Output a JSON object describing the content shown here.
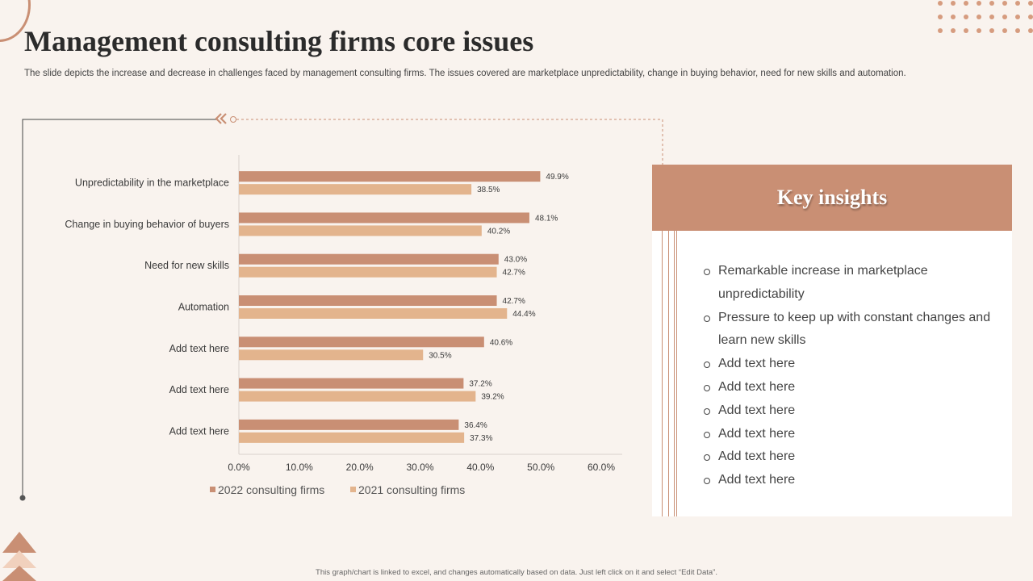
{
  "header": {
    "title": "Management consulting firms core issues",
    "subtitle": "The slide depicts the increase and decrease in challenges faced by management consulting firms. The issues covered are marketplace unpredictability, change in buying behavior, need for new skills and automation."
  },
  "colors": {
    "accent": "#c98f74",
    "series_2022": "#c98f74",
    "series_2021": "#e3b48d",
    "background": "#f9f3ee"
  },
  "chart_data": {
    "type": "bar",
    "orientation": "horizontal",
    "categories": [
      "Unpredictability in the marketplace",
      "Change in buying behavior of buyers",
      "Need for new skills",
      "Automation",
      "Add text here",
      "Add text here",
      "Add text here"
    ],
    "series": [
      {
        "name": "2022 consulting firms",
        "color": "#c98f74",
        "values": [
          49.9,
          48.1,
          43.0,
          42.7,
          40.6,
          37.2,
          36.4
        ]
      },
      {
        "name": "2021 consulting firms",
        "color": "#e3b48d",
        "values": [
          38.5,
          40.2,
          42.7,
          44.4,
          30.5,
          39.2,
          37.3
        ]
      }
    ],
    "xlim": [
      0,
      60
    ],
    "xticks": [
      0,
      10,
      20,
      30,
      40,
      50,
      60
    ],
    "tick_format": "percent-1dp",
    "legend": "bottom",
    "grid": false
  },
  "insights": {
    "title": "Key insights",
    "items": [
      "Remarkable increase in marketplace unpredictability",
      "Pressure to keep up with constant changes and learn new skills",
      "Add text here",
      "Add text here",
      "Add text here",
      "Add text here",
      "Add text here",
      "Add text here"
    ]
  },
  "footer": {
    "note": "This graph/chart is linked to excel, and changes automatically based on data. Just left click on it and select “Edit Data”."
  }
}
